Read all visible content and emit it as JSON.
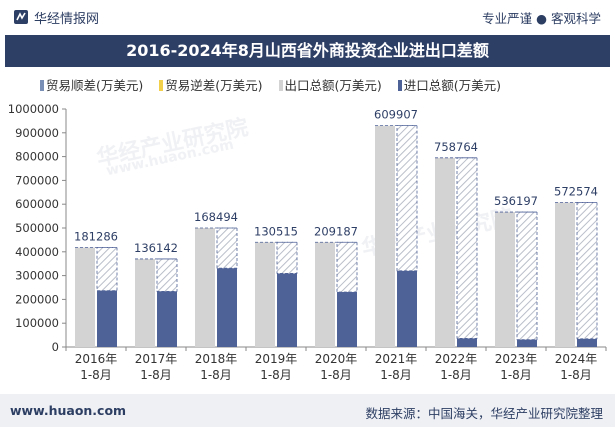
{
  "header": {
    "brand": "华经情报网",
    "tagline": "专业严谨 ● 客观科学",
    "title": "2016-2024年8月山西省外商投资企业进出口差额"
  },
  "legend": [
    {
      "label": "贸易顺差(万美元)",
      "color": "#7a8fb5"
    },
    {
      "label": "贸易逆差(万美元)",
      "color": "#f2d04a"
    },
    {
      "label": "出口总额(万美元)",
      "color": "#d3d3d3"
    },
    {
      "label": "进口总额(万美元)",
      "color": "#4f6298"
    }
  ],
  "watermarks": [
    "华经产业研究院",
    "www.huaon.com"
  ],
  "chart_data": {
    "type": "bar",
    "title": "2016-2024年8月山西省外商投资企业进出口差额",
    "categories": [
      [
        "2016年",
        "1-8月"
      ],
      [
        "2017年",
        "1-8月"
      ],
      [
        "2018年",
        "1-8月"
      ],
      [
        "2019年",
        "1-8月"
      ],
      [
        "2020年",
        "1-8月"
      ],
      [
        "2021年",
        "1-8月"
      ],
      [
        "2022年",
        "1-8月"
      ],
      [
        "2023年",
        "1-8月"
      ],
      [
        "2024年",
        "1-8月"
      ]
    ],
    "series": [
      {
        "name": "贸易顺差(万美元)",
        "values": [
          181286,
          136142,
          168494,
          130515,
          209187,
          609907,
          758764,
          536197,
          572574
        ]
      },
      {
        "name": "出口总额(万美元)",
        "values": [
          418000,
          370000,
          500000,
          440000,
          440000,
          930000,
          795000,
          567000,
          607000
        ]
      },
      {
        "name": "进口总额(万美元)",
        "values": [
          237000,
          234000,
          331000,
          309000,
          231000,
          320000,
          36000,
          31000,
          34000
        ]
      }
    ],
    "xlabel": "",
    "ylabel": "",
    "ylim": [
      0,
      1000000
    ],
    "yticks": [
      0,
      100000,
      200000,
      300000,
      400000,
      500000,
      600000,
      700000,
      800000,
      900000,
      1000000
    ]
  },
  "footer": {
    "site": "www.huaon.com",
    "source": "数据来源：中国海关，华经产业研究院整理"
  }
}
